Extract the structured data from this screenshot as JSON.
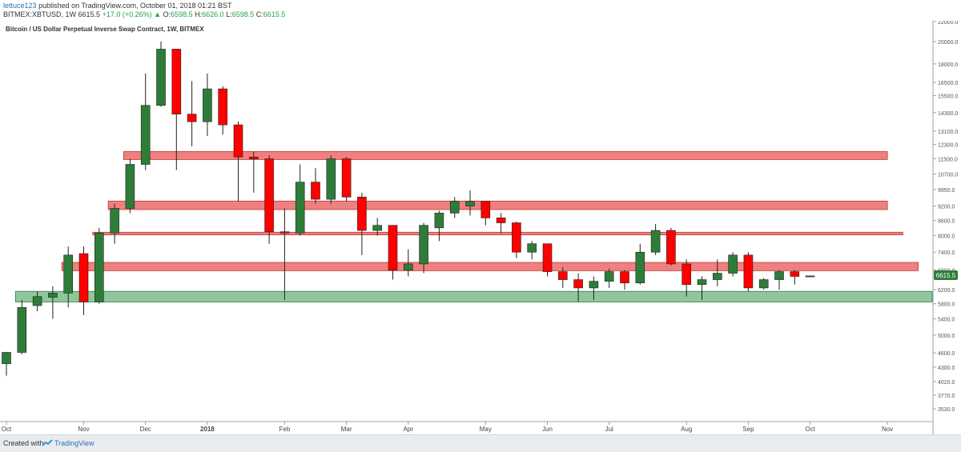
{
  "header": {
    "user": "lettuce123",
    "published": "published on TradingView.com, October 01, 2018 01:21 BST",
    "symbol": "BITMEX:XBTUSD, 1W",
    "last": "6615.5",
    "change": "+17.0 (+0.26%)",
    "o_label": "O:",
    "o_val": "6598.5",
    "h_label": "H:",
    "h_val": "6626.0",
    "l_label": "L:",
    "l_val": "6598.5",
    "c_label": "C:",
    "c_val": "6615.5"
  },
  "footer": {
    "created": "Created with",
    "brand": "TradingView"
  },
  "colors": {
    "up": "#2d7d39",
    "down": "#ff0000",
    "res_zone": "#f08080",
    "sup_zone": "#8fc79a"
  },
  "chart_data": {
    "type": "candlestick",
    "title": "Bitcoin / US Dollar Perpetual Inverse Swap Contract, 1W, BITMEX",
    "y_scale": "log",
    "ylim": [
      3280,
      22000
    ],
    "y_ticks": [
      22000.0,
      20000.0,
      18000.0,
      16500.0,
      15500.0,
      14300.0,
      13100.0,
      12300.0,
      11500.0,
      10700.0,
      9950.0,
      9200.0,
      8600.0,
      8000.0,
      7400.0,
      6800.0,
      6200.0,
      5800.0,
      5400.0,
      5000.0,
      4600.0,
      4300.0,
      4020.0,
      3770.0,
      3530.0
    ],
    "price_label": "6615.5",
    "x_labels": [
      {
        "label": "Oct",
        "week": 0
      },
      {
        "label": "Nov",
        "week": 5
      },
      {
        "label": "Dec",
        "week": 9
      },
      {
        "label": "2018",
        "week": 13
      },
      {
        "label": "Feb",
        "week": 18
      },
      {
        "label": "Mar",
        "week": 22
      },
      {
        "label": "Apr",
        "week": 26
      },
      {
        "label": "May",
        "week": 31
      },
      {
        "label": "Jun",
        "week": 35
      },
      {
        "label": "Jul",
        "week": 39
      },
      {
        "label": "Aug",
        "week": 44
      },
      {
        "label": "Sep",
        "week": 48
      },
      {
        "label": "Oct",
        "week": 52
      },
      {
        "label": "Nov",
        "week": 57
      }
    ],
    "candles": [
      {
        "o": 4370,
        "h": 4620,
        "l": 4130,
        "c": 4610
      },
      {
        "o": 4610,
        "h": 5900,
        "l": 4570,
        "c": 5700
      },
      {
        "o": 5750,
        "h": 6150,
        "l": 5600,
        "c": 6000
      },
      {
        "o": 5980,
        "h": 6300,
        "l": 5400,
        "c": 6100
      },
      {
        "o": 6100,
        "h": 7600,
        "l": 5700,
        "c": 7300
      },
      {
        "o": 7350,
        "h": 7600,
        "l": 5500,
        "c": 5850
      },
      {
        "o": 5850,
        "h": 8300,
        "l": 5800,
        "c": 8100
      },
      {
        "o": 8100,
        "h": 9300,
        "l": 7700,
        "c": 9100
      },
      {
        "o": 9100,
        "h": 11500,
        "l": 8900,
        "c": 11200
      },
      {
        "o": 11200,
        "h": 17200,
        "l": 10900,
        "c": 14800
      },
      {
        "o": 14800,
        "h": 20000,
        "l": 14700,
        "c": 19300
      },
      {
        "o": 19300,
        "h": 19300,
        "l": 10900,
        "c": 14200
      },
      {
        "o": 14200,
        "h": 16600,
        "l": 12200,
        "c": 13700
      },
      {
        "o": 13700,
        "h": 17200,
        "l": 12800,
        "c": 16000
      },
      {
        "o": 16000,
        "h": 16200,
        "l": 12900,
        "c": 13500
      },
      {
        "o": 13500,
        "h": 13700,
        "l": 9400,
        "c": 11600
      },
      {
        "o": 11600,
        "h": 11900,
        "l": 9800,
        "c": 11500
      },
      {
        "o": 11500,
        "h": 11700,
        "l": 7700,
        "c": 8150
      },
      {
        "o": 8150,
        "h": 9100,
        "l": 5900,
        "c": 8100
      },
      {
        "o": 8100,
        "h": 11200,
        "l": 8000,
        "c": 10300
      },
      {
        "o": 10300,
        "h": 11000,
        "l": 9300,
        "c": 9500
      },
      {
        "o": 9500,
        "h": 11700,
        "l": 9300,
        "c": 11500
      },
      {
        "o": 11500,
        "h": 11600,
        "l": 9400,
        "c": 9600
      },
      {
        "o": 9600,
        "h": 9800,
        "l": 7300,
        "c": 8200
      },
      {
        "o": 8200,
        "h": 8700,
        "l": 8000,
        "c": 8400
      },
      {
        "o": 8400,
        "h": 8400,
        "l": 6500,
        "c": 6800
      },
      {
        "o": 6800,
        "h": 7500,
        "l": 6600,
        "c": 7000
      },
      {
        "o": 7000,
        "h": 8500,
        "l": 6700,
        "c": 8400
      },
      {
        "o": 8300,
        "h": 9000,
        "l": 7800,
        "c": 8900
      },
      {
        "o": 8900,
        "h": 9600,
        "l": 8700,
        "c": 9400
      },
      {
        "o": 9200,
        "h": 9900,
        "l": 8800,
        "c": 9400
      },
      {
        "o": 9400,
        "h": 9400,
        "l": 8400,
        "c": 8700
      },
      {
        "o": 8700,
        "h": 8900,
        "l": 8100,
        "c": 8500
      },
      {
        "o": 8500,
        "h": 8550,
        "l": 7200,
        "c": 7400
      },
      {
        "o": 7400,
        "h": 7800,
        "l": 7150,
        "c": 7700
      },
      {
        "o": 7700,
        "h": 7700,
        "l": 6600,
        "c": 6750
      },
      {
        "o": 6750,
        "h": 6900,
        "l": 6250,
        "c": 6500
      },
      {
        "o": 6500,
        "h": 6700,
        "l": 5850,
        "c": 6250
      },
      {
        "o": 6250,
        "h": 6600,
        "l": 5900,
        "c": 6450
      },
      {
        "o": 6450,
        "h": 6850,
        "l": 6250,
        "c": 6750
      },
      {
        "o": 6750,
        "h": 6800,
        "l": 6200,
        "c": 6400
      },
      {
        "o": 6400,
        "h": 7700,
        "l": 6350,
        "c": 7400
      },
      {
        "o": 7400,
        "h": 8450,
        "l": 7300,
        "c": 8200
      },
      {
        "o": 8200,
        "h": 8300,
        "l": 6950,
        "c": 7000
      },
      {
        "o": 7000,
        "h": 7150,
        "l": 6000,
        "c": 6350
      },
      {
        "o": 6350,
        "h": 6600,
        "l": 5900,
        "c": 6500
      },
      {
        "o": 6500,
        "h": 7150,
        "l": 6300,
        "c": 6700
      },
      {
        "o": 6700,
        "h": 7400,
        "l": 6600,
        "c": 7300
      },
      {
        "o": 7300,
        "h": 7400,
        "l": 6150,
        "c": 6250
      },
      {
        "o": 6250,
        "h": 6550,
        "l": 6200,
        "c": 6500
      },
      {
        "o": 6500,
        "h": 6800,
        "l": 6200,
        "c": 6750
      },
      {
        "o": 6750,
        "h": 6800,
        "l": 6350,
        "c": 6600
      },
      {
        "o": 6598.5,
        "h": 6626,
        "l": 6598.5,
        "c": 6615.5
      }
    ],
    "zones": [
      {
        "kind": "resistance",
        "from": 11460,
        "to": 11900,
        "start_week": 8,
        "end_week": 57
      },
      {
        "kind": "resistance",
        "from": 9050,
        "to": 9420,
        "start_week": 7,
        "end_week": 57
      },
      {
        "kind": "resistance",
        "from": 8030,
        "to": 8130,
        "start_week": 6,
        "end_week": 58
      },
      {
        "kind": "resistance",
        "from": 6780,
        "to": 7050,
        "start_week": 4,
        "end_week": 59
      },
      {
        "kind": "support",
        "from": 5850,
        "to": 6150,
        "start_week": 1,
        "end_week": 60
      }
    ]
  }
}
